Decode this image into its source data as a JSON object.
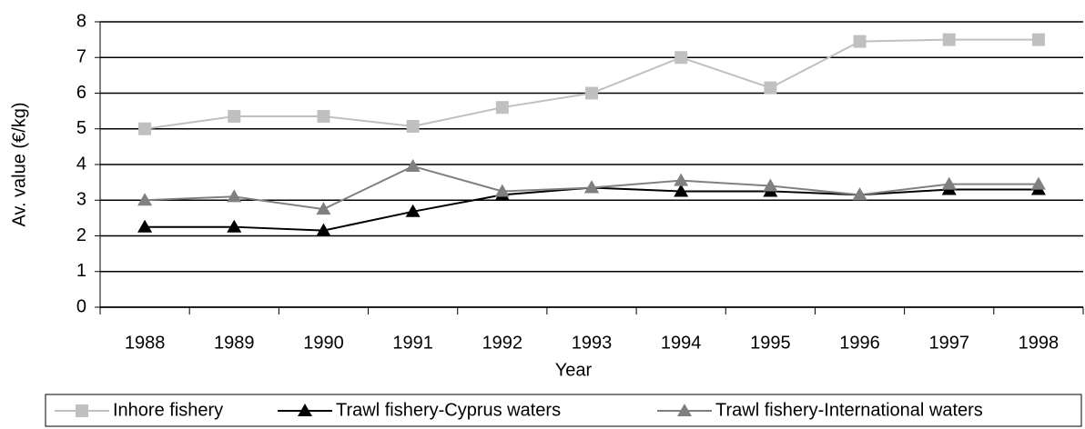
{
  "chart_data": {
    "type": "line",
    "x_label": "Year",
    "y_label": "Av. value (€/kg)",
    "categories": [
      "1988",
      "1989",
      "1990",
      "1991",
      "1992",
      "1993",
      "1994",
      "1995",
      "1996",
      "1997",
      "1998"
    ],
    "series": [
      {
        "name": "Inhore fishery",
        "color": "#c0c0c0",
        "marker": "square",
        "values": [
          5.0,
          5.35,
          5.35,
          5.07,
          5.6,
          6.0,
          7.0,
          6.15,
          7.45,
          7.5,
          7.5
        ]
      },
      {
        "name": "Trawl fishery-Cyprus waters",
        "color": "#000000",
        "marker": "triangle",
        "values": [
          2.25,
          2.25,
          2.15,
          2.68,
          3.15,
          3.35,
          3.25,
          3.25,
          3.15,
          3.3,
          3.3
        ]
      },
      {
        "name": "Trawl fishery-International waters",
        "color": "#808080",
        "marker": "triangle",
        "values": [
          3.0,
          3.1,
          2.75,
          3.95,
          3.25,
          3.35,
          3.55,
          3.4,
          3.15,
          3.45,
          3.45
        ]
      }
    ],
    "ylim": [
      0,
      8
    ],
    "yticks": [
      0,
      1,
      2,
      3,
      4,
      5,
      6,
      7,
      8
    ],
    "grid": true,
    "legend": "bottom"
  }
}
